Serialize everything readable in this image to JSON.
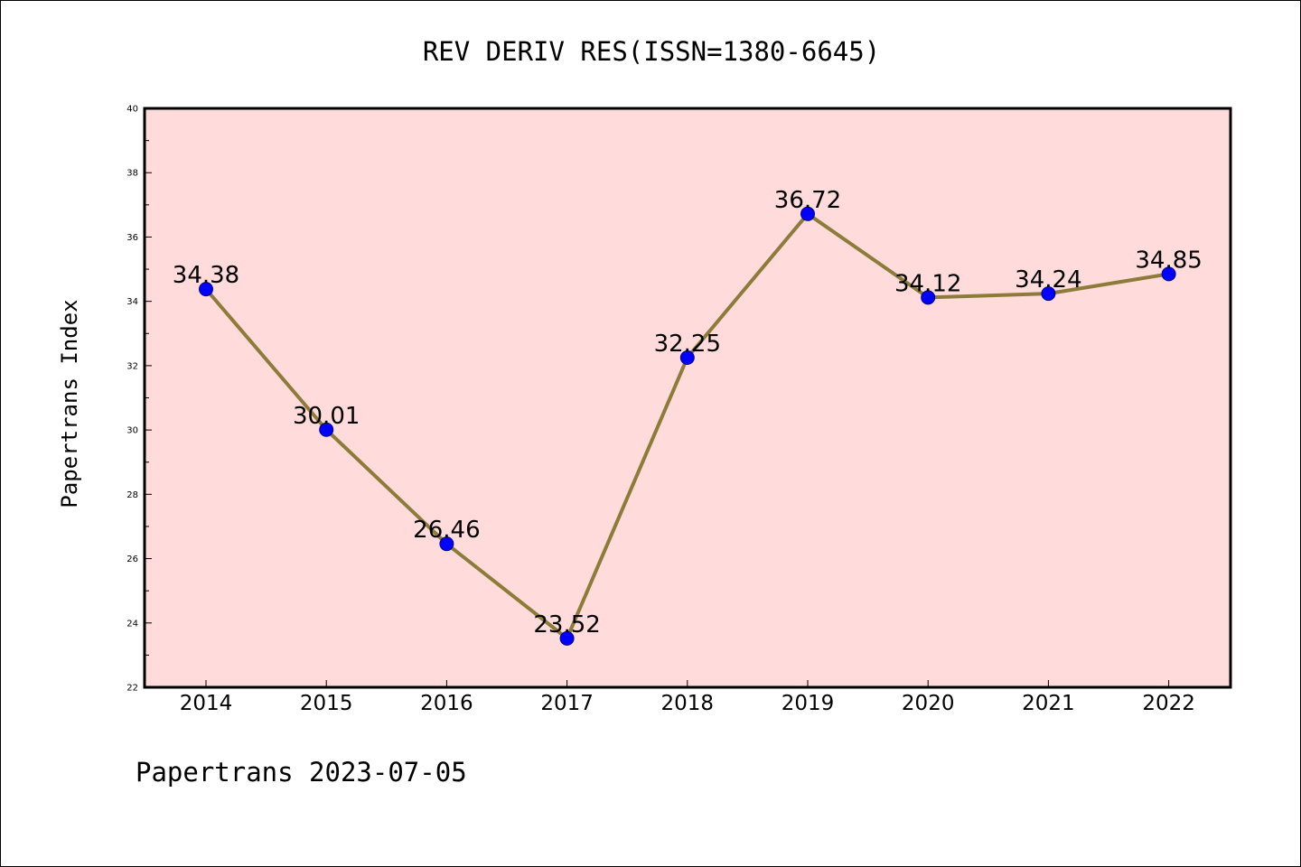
{
  "colors": {
    "plot_background": "#ffdcdb",
    "line": "#8d7b3a",
    "marker_fill": "#0000ff",
    "marker_stroke": "#000080",
    "axis": "#000000"
  },
  "footer": {
    "text": "Papertrans 2023-07-05"
  },
  "chart_data": {
    "type": "line",
    "title": "REV DERIV RES(ISSN=1380-6645)",
    "xlabel": "",
    "ylabel": "Papertrans Index",
    "categories": [
      "2014",
      "2015",
      "2016",
      "2017",
      "2018",
      "2019",
      "2020",
      "2021",
      "2022"
    ],
    "series": [
      {
        "values": [
          34.38,
          30.01,
          26.46,
          23.52,
          32.25,
          36.72,
          34.12,
          34.24,
          34.85
        ],
        "labels": [
          "34.38",
          "30.01",
          "26.46",
          "23.52",
          "32.25",
          "36.72",
          "34.12",
          "34.24",
          "34.85"
        ]
      }
    ],
    "ylim": [
      22,
      40
    ],
    "yticks": [
      "22",
      "24",
      "26",
      "28",
      "30",
      "32",
      "34",
      "36",
      "38",
      "40"
    ],
    "grid": false,
    "legend": "none"
  }
}
